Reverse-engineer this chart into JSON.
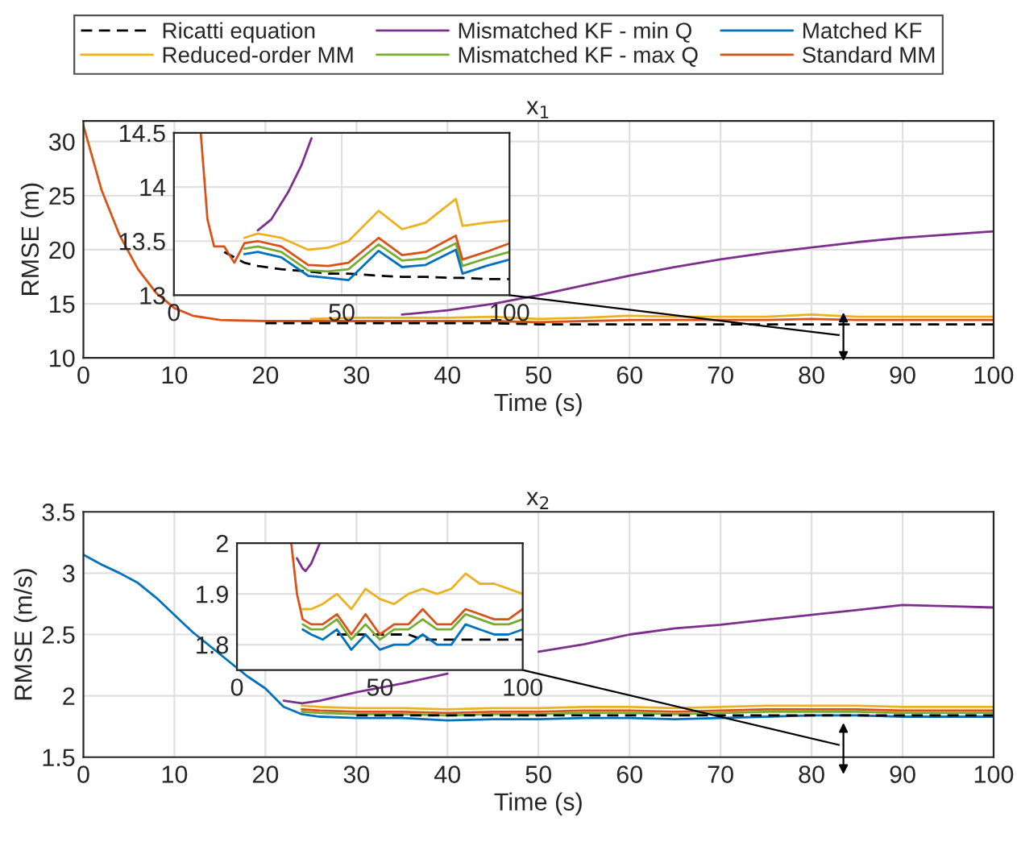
{
  "chart_data": [
    {
      "type": "line",
      "title": "x$_{1}$",
      "xlabel": "Time (s)",
      "ylabel": "RMSE (m)",
      "xlim": [
        0,
        100
      ],
      "ylim": [
        10,
        31.9
      ],
      "xticks": [
        0,
        10,
        20,
        30,
        40,
        50,
        60,
        70,
        80,
        90,
        100
      ],
      "yticks": [
        10,
        15,
        20,
        25,
        30
      ],
      "grid": true,
      "x": [
        0,
        2,
        4,
        6,
        8,
        10,
        12,
        15,
        20,
        25,
        30,
        35,
        40,
        45,
        50,
        55,
        60,
        65,
        70,
        75,
        80,
        85,
        90,
        95,
        100
      ],
      "series": [
        {
          "color": "#d95319",
          "values": [
            31.5,
            25.5,
            21.3,
            18.2,
            16.0,
            14.6,
            13.9,
            13.5,
            13.4,
            13.4,
            13.4,
            13.4,
            13.4,
            13.4,
            13.3,
            13.4,
            13.5,
            13.5,
            13.5,
            13.5,
            13.6,
            13.5,
            13.5,
            13.5,
            13.5
          ]
        },
        {
          "color": "#edb120",
          "values": [
            null,
            null,
            null,
            null,
            null,
            null,
            null,
            null,
            null,
            13.6,
            13.7,
            13.7,
            13.7,
            13.8,
            13.6,
            13.7,
            13.9,
            13.8,
            13.8,
            13.8,
            14.0,
            13.8,
            13.8,
            13.8,
            13.8
          ]
        },
        {
          "color": "#7e2f8e",
          "values": [
            null,
            null,
            null,
            null,
            null,
            null,
            null,
            null,
            null,
            null,
            null,
            14.0,
            14.4,
            15.0,
            15.8,
            16.7,
            17.6,
            18.4,
            19.1,
            19.7,
            20.2,
            20.7,
            21.1,
            21.4,
            21.7
          ]
        },
        {
          "color": "#000000",
          "line_style": "dashed",
          "values": [
            null,
            null,
            null,
            null,
            null,
            null,
            null,
            null,
            13.2,
            13.2,
            13.2,
            13.2,
            13.2,
            13.2,
            13.1,
            13.1,
            13.1,
            13.1,
            13.1,
            13.1,
            13.1,
            13.1,
            13.1,
            13.1,
            13.1
          ]
        }
      ]
    },
    {
      "type": "line",
      "xlim": [
        0,
        100
      ],
      "ylim": [
        13,
        14.5
      ],
      "xticks": [
        0,
        50,
        100
      ],
      "yticks": [
        13,
        13.5,
        14,
        14.5
      ],
      "grid": true,
      "legend": "top",
      "x": [
        8,
        10,
        12,
        15,
        18,
        21,
        25,
        32,
        40,
        46,
        52,
        61,
        68,
        75,
        84,
        86,
        93,
        100
      ],
      "series": [
        {
          "name": "Ricatti equation",
          "color": "#000000",
          "line_style": "dashed",
          "values": [
            null,
            null,
            null,
            13.4,
            13.35,
            13.3,
            13.27,
            13.24,
            13.22,
            13.2,
            13.2,
            13.18,
            13.17,
            13.17,
            13.16,
            13.16,
            13.15,
            13.15
          ]
        },
        {
          "name": "Reduced-order MM",
          "color": "#edb120",
          "values": [
            null,
            null,
            null,
            null,
            null,
            13.53,
            13.57,
            13.53,
            13.42,
            13.44,
            13.5,
            13.78,
            13.61,
            13.67,
            13.89,
            13.64,
            13.67,
            13.69
          ]
        },
        {
          "name": "Mismatched KF - min Q",
          "color": "#7e2f8e",
          "x": [
            25,
            29,
            34,
            38,
            41
          ],
          "values": [
            13.6,
            13.7,
            13.95,
            14.2,
            14.45
          ]
        },
        {
          "name": "Mismatched KF - max Q",
          "color": "#77ac30",
          "values": [
            null,
            null,
            null,
            null,
            null,
            13.43,
            13.45,
            13.4,
            13.23,
            13.22,
            13.24,
            13.47,
            13.32,
            13.34,
            13.48,
            13.27,
            13.34,
            13.4
          ]
        },
        {
          "name": "Matched KF",
          "color": "#0072bd",
          "values": [
            null,
            null,
            null,
            null,
            null,
            13.38,
            13.4,
            13.35,
            13.18,
            13.16,
            13.14,
            13.41,
            13.26,
            13.28,
            13.42,
            13.2,
            13.27,
            13.33
          ]
        },
        {
          "name": "Standard MM",
          "color": "#d95319",
          "values": [
            14.5,
            13.7,
            13.45,
            13.45,
            13.3,
            13.48,
            13.5,
            13.45,
            13.28,
            13.27,
            13.3,
            13.53,
            13.37,
            13.4,
            13.55,
            13.33,
            13.4,
            13.48
          ]
        }
      ]
    },
    {
      "type": "line",
      "title": "x$_{2}$",
      "xlabel": "Time (s)",
      "ylabel": "RMSE (m/s)",
      "xlim": [
        0,
        100
      ],
      "ylim": [
        1.5,
        3.5
      ],
      "xticks": [
        0,
        10,
        20,
        30,
        40,
        50,
        60,
        70,
        80,
        90,
        100
      ],
      "yticks": [
        1.5,
        2,
        2.5,
        3,
        3.5
      ],
      "grid": true,
      "x": [
        0,
        2,
        4,
        6,
        8,
        10,
        12,
        14,
        16,
        18,
        20,
        22,
        24,
        26,
        30,
        35,
        40,
        45,
        50,
        55,
        60,
        65,
        70,
        75,
        80,
        85,
        90,
        95,
        100
      ],
      "series": [
        {
          "color": "#0072bd",
          "values": [
            3.15,
            3.07,
            3.0,
            2.92,
            2.8,
            2.66,
            2.52,
            2.4,
            2.28,
            2.16,
            2.06,
            1.91,
            1.85,
            1.83,
            1.82,
            1.82,
            1.8,
            1.81,
            1.81,
            1.82,
            1.82,
            1.81,
            1.82,
            1.83,
            1.84,
            1.84,
            1.83,
            1.83,
            1.83
          ]
        },
        {
          "color": "#77ac30",
          "values": [
            null,
            null,
            null,
            null,
            null,
            null,
            null,
            null,
            null,
            null,
            null,
            null,
            1.87,
            1.86,
            1.85,
            1.85,
            1.84,
            1.85,
            1.85,
            1.86,
            1.86,
            1.85,
            1.86,
            1.87,
            1.87,
            1.87,
            1.86,
            1.86,
            1.86
          ]
        },
        {
          "color": "#d95319",
          "values": [
            null,
            null,
            null,
            null,
            null,
            null,
            null,
            null,
            null,
            null,
            null,
            null,
            1.89,
            1.88,
            1.87,
            1.87,
            1.86,
            1.87,
            1.87,
            1.88,
            1.88,
            1.87,
            1.88,
            1.89,
            1.89,
            1.89,
            1.88,
            1.88,
            1.88
          ]
        },
        {
          "color": "#edb120",
          "values": [
            null,
            null,
            null,
            null,
            null,
            null,
            null,
            null,
            null,
            null,
            null,
            null,
            1.92,
            1.91,
            1.9,
            1.9,
            1.89,
            1.9,
            1.9,
            1.91,
            1.91,
            1.9,
            1.91,
            1.92,
            1.92,
            1.92,
            1.91,
            1.91,
            1.91
          ]
        },
        {
          "color": "#7e2f8e",
          "values": [
            null,
            null,
            null,
            null,
            null,
            null,
            null,
            null,
            null,
            null,
            null,
            1.96,
            1.94,
            1.96,
            2.03,
            2.1,
            2.18,
            null,
            2.36,
            2.42,
            2.5,
            2.55,
            2.58,
            2.62,
            2.66,
            2.7,
            2.74,
            2.73,
            2.72
          ]
        },
        {
          "color": "#000000",
          "line_style": "dashed",
          "values": [
            null,
            null,
            null,
            null,
            null,
            null,
            null,
            null,
            null,
            null,
            null,
            null,
            null,
            null,
            1.84,
            1.84,
            1.84,
            1.84,
            1.84,
            1.84,
            1.84,
            1.84,
            1.84,
            1.84,
            1.84,
            1.84,
            1.84,
            1.84,
            1.84
          ]
        }
      ]
    },
    {
      "type": "line",
      "xlim": [
        0,
        100
      ],
      "ylim": [
        1.75,
        2.0
      ],
      "xticks": [
        0,
        50,
        100
      ],
      "yticks": [
        1.8,
        1.9,
        2
      ],
      "grid": true,
      "x": [
        19,
        21,
        23,
        26,
        30,
        35,
        40,
        45,
        50,
        55,
        60,
        65,
        70,
        75,
        80,
        85,
        90,
        95,
        100
      ],
      "series": [
        {
          "color": "#000000",
          "line_style": "dashed",
          "values": [
            null,
            null,
            null,
            null,
            null,
            1.82,
            1.82,
            1.82,
            1.82,
            1.82,
            1.82,
            1.81,
            1.81,
            1.81,
            1.81,
            1.81,
            1.81,
            1.81,
            1.81
          ]
        },
        {
          "color": "#edb120",
          "values": [
            null,
            null,
            1.87,
            1.87,
            1.88,
            1.9,
            1.87,
            1.91,
            1.89,
            1.88,
            1.9,
            1.91,
            1.9,
            1.91,
            1.94,
            1.92,
            1.92,
            1.91,
            1.9
          ]
        },
        {
          "color": "#7e2f8e",
          "x": [
            21,
            23,
            24,
            26,
            29
          ],
          "values": [
            1.97,
            1.95,
            1.945,
            1.96,
            2.0
          ]
        },
        {
          "color": "#77ac30",
          "values": [
            null,
            null,
            1.84,
            1.83,
            1.83,
            1.85,
            1.81,
            1.84,
            1.81,
            1.83,
            1.83,
            1.85,
            1.83,
            1.83,
            1.86,
            1.85,
            1.84,
            1.84,
            1.85
          ]
        },
        {
          "color": "#0072bd",
          "values": [
            null,
            null,
            1.83,
            1.82,
            1.81,
            1.83,
            1.79,
            1.82,
            1.79,
            1.8,
            1.8,
            1.82,
            1.8,
            1.8,
            1.84,
            1.83,
            1.82,
            1.82,
            1.83
          ]
        },
        {
          "color": "#d95319",
          "values": [
            2.0,
            1.9,
            1.85,
            1.84,
            1.84,
            1.86,
            1.82,
            1.86,
            1.82,
            1.84,
            1.84,
            1.87,
            1.84,
            1.84,
            1.87,
            1.86,
            1.85,
            1.85,
            1.87
          ]
        }
      ]
    }
  ]
}
